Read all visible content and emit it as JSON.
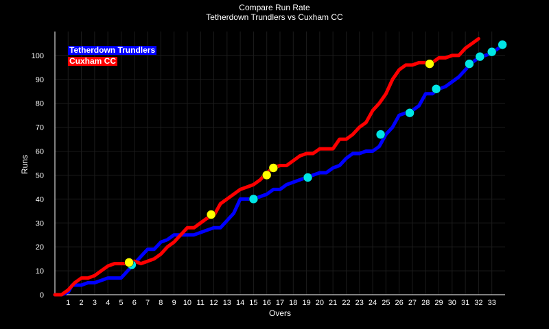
{
  "chart_data": {
    "type": "line",
    "title": "Compare Run Rate",
    "subtitle": "Tetherdown Trundlers  vs Cuxham CC",
    "xlabel": "Overs",
    "ylabel": "Runs",
    "xlim": [
      0,
      34
    ],
    "ylim": [
      0,
      110
    ],
    "x_ticks": [
      "1",
      "2",
      "3",
      "4",
      "5",
      "6",
      "7",
      "8",
      "9",
      "10",
      "11",
      "12",
      "13",
      "14",
      "15",
      "16",
      "17",
      "18",
      "19",
      "20",
      "21",
      "22",
      "23",
      "24",
      "25",
      "26",
      "27",
      "28",
      "29",
      "30",
      "31",
      "32",
      "33"
    ],
    "y_ticks": [
      "0",
      "10",
      "20",
      "30",
      "40",
      "50",
      "60",
      "70",
      "80",
      "90",
      "100"
    ],
    "grid": true,
    "legend_position": "top-left",
    "series": [
      {
        "name": "Tetherdown Trundlers",
        "color": "#0000ff",
        "wicket_marker_color": "#00e5e5",
        "points": [
          [
            0,
            0
          ],
          [
            0.5,
            0
          ],
          [
            1,
            1
          ],
          [
            1.3,
            4
          ],
          [
            2,
            4
          ],
          [
            2.5,
            5
          ],
          [
            3,
            5
          ],
          [
            3.5,
            6
          ],
          [
            4,
            7
          ],
          [
            4.5,
            7
          ],
          [
            5,
            7
          ],
          [
            5.5,
            10
          ],
          [
            6,
            13
          ],
          [
            6.5,
            16
          ],
          [
            7,
            19
          ],
          [
            7.5,
            19
          ],
          [
            8,
            22
          ],
          [
            8.5,
            23
          ],
          [
            9,
            25
          ],
          [
            9.5,
            25
          ],
          [
            10,
            25
          ],
          [
            10.5,
            25
          ],
          [
            11,
            26
          ],
          [
            11.5,
            27
          ],
          [
            12,
            28
          ],
          [
            12.5,
            28
          ],
          [
            13,
            31
          ],
          [
            13.5,
            34
          ],
          [
            14,
            40
          ],
          [
            14.5,
            40
          ],
          [
            15,
            40
          ],
          [
            15.5,
            41
          ],
          [
            16,
            42
          ],
          [
            16.5,
            44
          ],
          [
            17,
            44
          ],
          [
            17.5,
            46
          ],
          [
            18,
            47
          ],
          [
            18.5,
            48
          ],
          [
            19,
            49
          ],
          [
            19.5,
            50
          ],
          [
            20,
            51
          ],
          [
            20.5,
            51
          ],
          [
            21,
            53
          ],
          [
            21.5,
            54
          ],
          [
            22,
            57
          ],
          [
            22.5,
            59
          ],
          [
            23,
            59
          ],
          [
            23.5,
            60
          ],
          [
            24,
            60
          ],
          [
            24.5,
            62
          ],
          [
            25,
            67
          ],
          [
            25.5,
            70
          ],
          [
            26,
            75
          ],
          [
            26.5,
            76
          ],
          [
            27,
            77
          ],
          [
            27.5,
            79
          ],
          [
            28,
            84
          ],
          [
            28.5,
            84
          ],
          [
            29,
            86
          ],
          [
            29.5,
            87
          ],
          [
            30,
            89
          ],
          [
            30.5,
            91
          ],
          [
            31,
            94
          ],
          [
            31.5,
            97
          ],
          [
            32,
            99
          ],
          [
            32.5,
            100
          ],
          [
            33,
            101
          ],
          [
            33.5,
            103
          ],
          [
            34,
            105
          ]
        ],
        "wickets": [
          [
            5.8,
            12.5
          ],
          [
            15,
            40
          ],
          [
            19.1,
            49
          ],
          [
            24.6,
            67
          ],
          [
            26.8,
            76
          ],
          [
            28.8,
            86
          ],
          [
            31.3,
            96.5
          ],
          [
            32.1,
            99.5
          ],
          [
            33,
            101.5
          ],
          [
            33.8,
            104.5
          ]
        ]
      },
      {
        "name": "Cuxham CC",
        "color": "#ff0000",
        "wicket_marker_color": "#ffff00",
        "points": [
          [
            0,
            0
          ],
          [
            0.5,
            0
          ],
          [
            1,
            2
          ],
          [
            1.5,
            5
          ],
          [
            2,
            7
          ],
          [
            2.5,
            7
          ],
          [
            3,
            8
          ],
          [
            3.5,
            10
          ],
          [
            4,
            12
          ],
          [
            4.5,
            13
          ],
          [
            5,
            13
          ],
          [
            5.5,
            13
          ],
          [
            6,
            14
          ],
          [
            6.5,
            13
          ],
          [
            7,
            14
          ],
          [
            7.5,
            15
          ],
          [
            8,
            17
          ],
          [
            8.5,
            20
          ],
          [
            9,
            22
          ],
          [
            9.5,
            25
          ],
          [
            10,
            28
          ],
          [
            10.5,
            28
          ],
          [
            11,
            30
          ],
          [
            11.5,
            32
          ],
          [
            12,
            33
          ],
          [
            12.5,
            38
          ],
          [
            13,
            40
          ],
          [
            13.5,
            42
          ],
          [
            14,
            44
          ],
          [
            14.5,
            45
          ],
          [
            15,
            46
          ],
          [
            15.5,
            48
          ],
          [
            16,
            51
          ],
          [
            16.5,
            53
          ],
          [
            17,
            54
          ],
          [
            17.5,
            54
          ],
          [
            18,
            56
          ],
          [
            18.5,
            58
          ],
          [
            19,
            59
          ],
          [
            19.5,
            59
          ],
          [
            20,
            61
          ],
          [
            20.5,
            61
          ],
          [
            21,
            61
          ],
          [
            21.5,
            65
          ],
          [
            22,
            65
          ],
          [
            22.5,
            67
          ],
          [
            23,
            70
          ],
          [
            23.5,
            72
          ],
          [
            24,
            77
          ],
          [
            24.5,
            80
          ],
          [
            25,
            84
          ],
          [
            25.5,
            90
          ],
          [
            26,
            94
          ],
          [
            26.5,
            96
          ],
          [
            27,
            96
          ],
          [
            27.5,
            97
          ],
          [
            28,
            97
          ],
          [
            28.5,
            97
          ],
          [
            29,
            99
          ],
          [
            29.5,
            99
          ],
          [
            30,
            100
          ],
          [
            30.5,
            100
          ],
          [
            31,
            103
          ],
          [
            31.5,
            105
          ],
          [
            32,
            107
          ]
        ],
        "wickets": [
          [
            5.6,
            13.5
          ],
          [
            11.8,
            33.5
          ],
          [
            16,
            50
          ],
          [
            16.5,
            53
          ],
          [
            28.3,
            96.5
          ]
        ]
      }
    ]
  }
}
